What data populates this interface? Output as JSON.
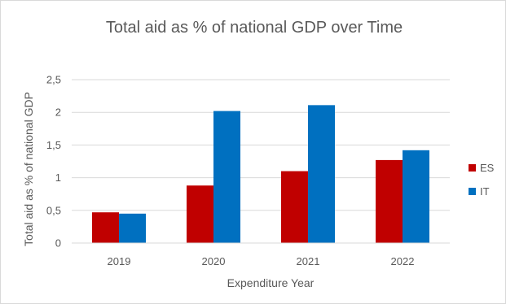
{
  "chart_data": {
    "type": "bar",
    "title": "Total aid as % of national GDP over Time",
    "xlabel": "Expenditure Year",
    "ylabel": "Total  aid as % of national GDP",
    "categories": [
      "2019",
      "2020",
      "2021",
      "2022"
    ],
    "series": [
      {
        "name": "ES",
        "color": "#C00000",
        "values": [
          0.47,
          0.88,
          1.1,
          1.27
        ]
      },
      {
        "name": "IT",
        "color": "#0070C0",
        "values": [
          0.45,
          2.02,
          2.11,
          1.42
        ]
      }
    ],
    "ylim": [
      0,
      2.5
    ],
    "yticks": [
      {
        "value": 0,
        "label": "0"
      },
      {
        "value": 0.5,
        "label": "0,5"
      },
      {
        "value": 1,
        "label": "1"
      },
      {
        "value": 1.5,
        "label": "1,5"
      },
      {
        "value": 2,
        "label": "2"
      },
      {
        "value": 2.5,
        "label": "2,5"
      }
    ],
    "grid": true,
    "legend_position": "right"
  }
}
